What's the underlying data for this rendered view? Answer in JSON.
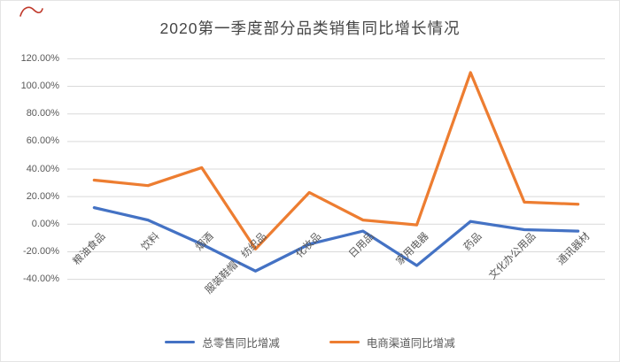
{
  "page": {
    "title": "2020第一季度部分品类销售同比增长情况"
  },
  "icons": {
    "red_scribble": "red-scribble-annotation"
  },
  "chart_data": {
    "type": "line",
    "title": "2020第一季度部分品类销售同比增长情况",
    "categories": [
      "粮油食品",
      "饮料",
      "烟酒",
      "服装鞋帽，纺织品",
      "化妆品",
      "日用品",
      "家用电器",
      "药品",
      "文化办公用品",
      "通讯器材"
    ],
    "series": [
      {
        "name": "总零售同比增减",
        "color": "#4472C4",
        "values": [
          12,
          3,
          -14.5,
          -34,
          -14.5,
          -5,
          -30,
          2,
          -4,
          -5
        ]
      },
      {
        "name": "电商渠道同比增减",
        "color": "#ED7D31",
        "values": [
          32,
          28,
          41,
          -18,
          23,
          3,
          -0.5,
          110,
          16,
          14.5
        ]
      }
    ],
    "xlabel": "",
    "ylabel": "",
    "yticks": [
      "120.00%",
      "100.00%",
      "80.00%",
      "60.00%",
      "40.00%",
      "20.00%",
      "0.00%",
      "-20.00%",
      "-40.00%"
    ],
    "ytick_values": [
      120,
      100,
      80,
      60,
      40,
      20,
      0,
      -20,
      -40
    ],
    "ylim": [
      -40,
      120
    ],
    "grid": true,
    "gridline_color": "#d9d9d9",
    "text_color": "#595959",
    "legend_position": "bottom"
  }
}
